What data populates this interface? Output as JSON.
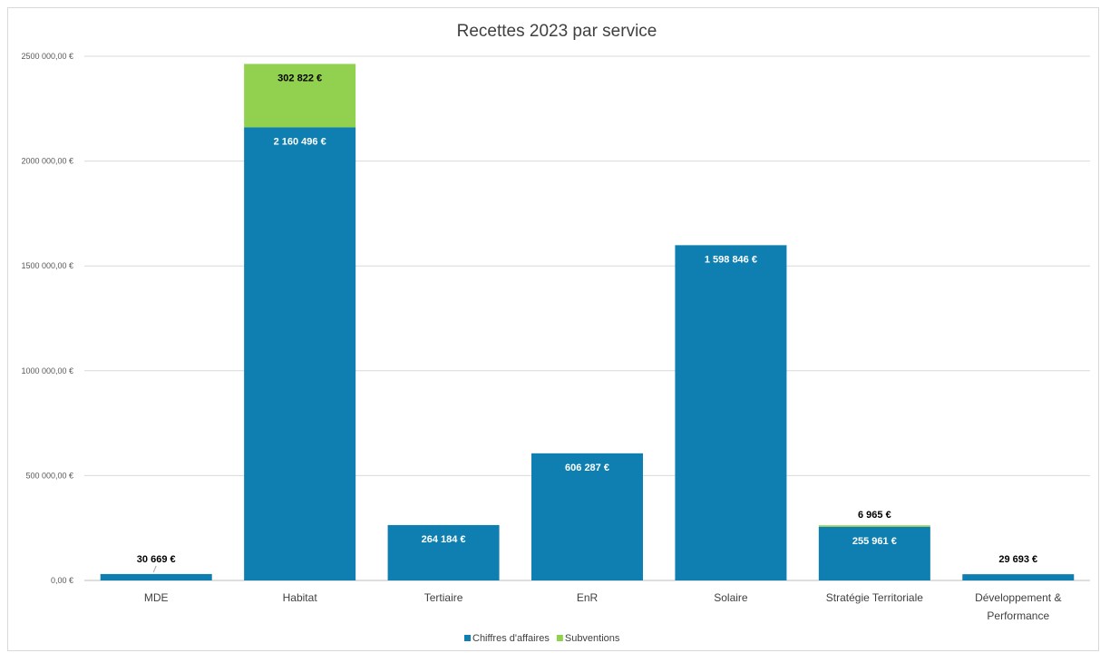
{
  "chart_data": {
    "type": "bar",
    "stacked": true,
    "title": "Recettes 2023 par service",
    "xlabel": "",
    "ylabel": "",
    "ylim": [
      0,
      2500000
    ],
    "yticks": [
      0,
      500000,
      1000000,
      1500000,
      2000000,
      2500000
    ],
    "ytick_labels": [
      "0,00 €",
      "500 000,00 €",
      "1000 000,00 €",
      "1500 000,00 €",
      "2000 000,00 €",
      "2500 000,00 €"
    ],
    "grid": true,
    "legend_position": "bottom",
    "categories": [
      [
        "MDE"
      ],
      [
        "Habitat"
      ],
      [
        "Tertiaire"
      ],
      [
        "EnR"
      ],
      [
        "Solaire"
      ],
      [
        "Stratégie Territoriale"
      ],
      [
        "Développement &",
        "Performance"
      ]
    ],
    "series": [
      {
        "name": "Chiffres d'affaires",
        "color": "#0e7fb0",
        "values": [
          30669,
          2160496,
          264184,
          606287,
          1598846,
          255961,
          29693
        ],
        "labels": [
          "30 669 €",
          "2 160 496 €",
          "264 184 €",
          "606 287 €",
          "1 598 846 €",
          "255 961 €",
          "29 693 €"
        ]
      },
      {
        "name": "Subventions",
        "color": "#92d050",
        "values": [
          0,
          302822,
          0,
          0,
          0,
          6965,
          0
        ],
        "labels": [
          "",
          "302 822 €",
          "",
          "",
          "",
          "6 965 €",
          ""
        ]
      }
    ]
  }
}
